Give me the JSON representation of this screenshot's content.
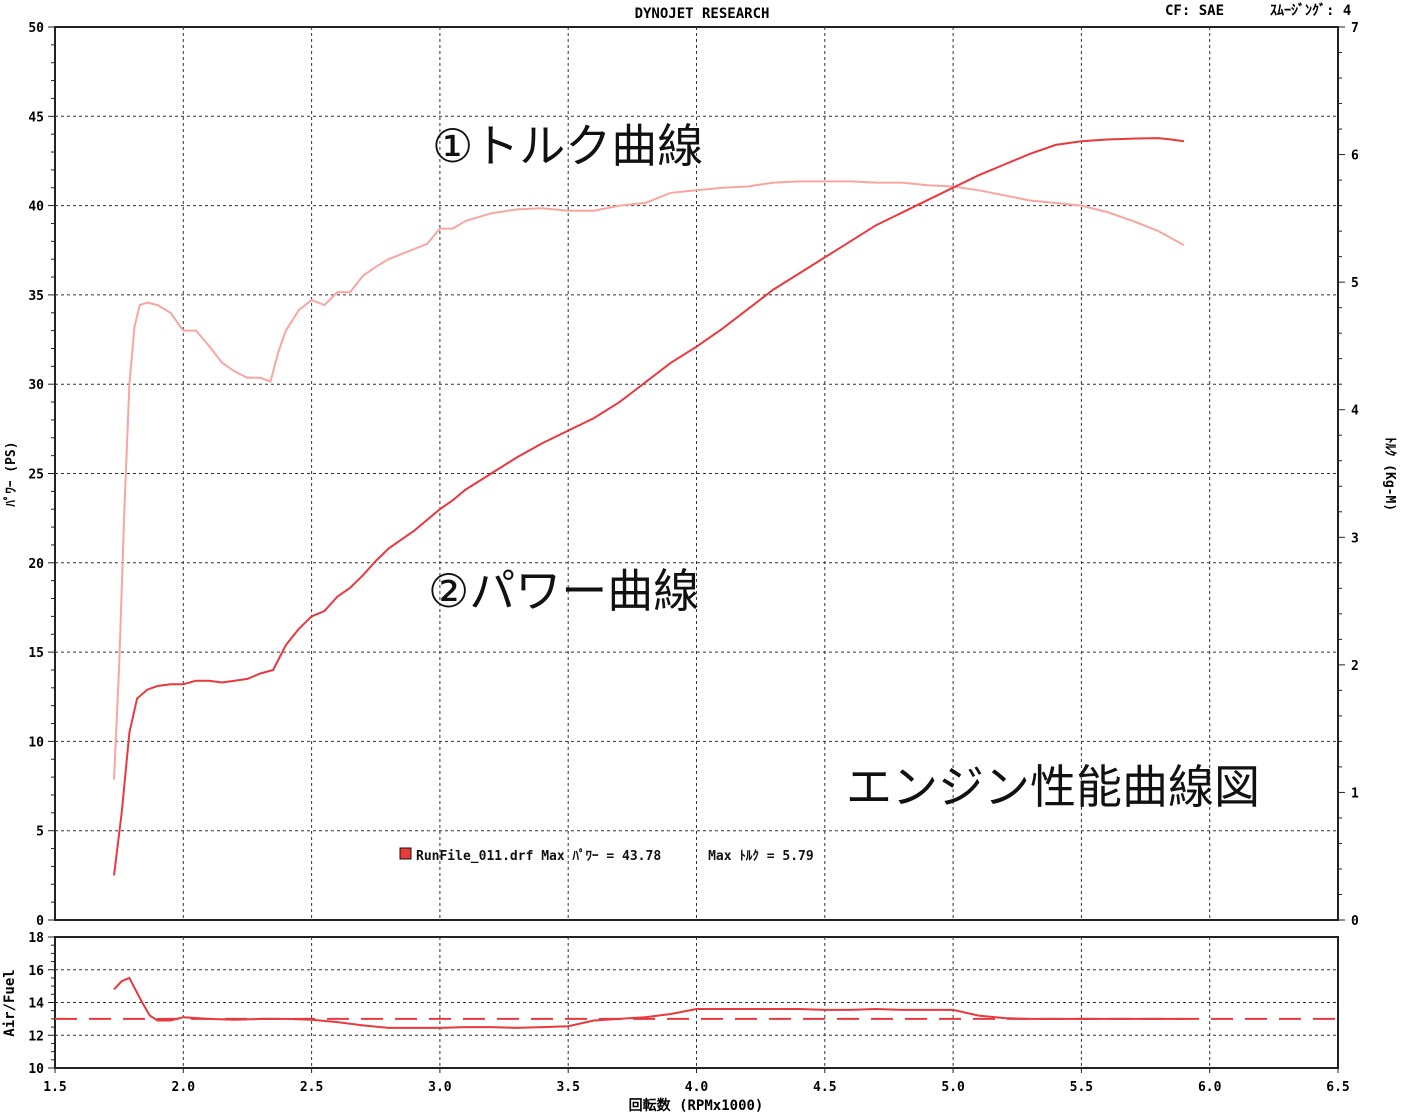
{
  "header": {
    "title": "DYNOJET RESEARCH",
    "cf": "CF: SAE",
    "smoothing": "ｽﾑｰｼﾞﾝｸﾞ: 4"
  },
  "annotations": {
    "torque_curve": "①トルク曲線",
    "power_curve": "②パワー曲線",
    "figure_caption": "エンジン性能曲線図"
  },
  "legend": {
    "swatch_color": "#e83c3c",
    "text": "RunFile_011.drf Max ﾊﾟﾜｰ = 43.78      Max ﾄﾙｸ = 5.79"
  },
  "colors": {
    "power": "#e8393f",
    "torque": "#f7a6a0",
    "afr": "#e8393f",
    "grid": "#333333"
  },
  "chart_data": [
    {
      "type": "line",
      "xlabel": "回転数 (RPMx1000)",
      "ylabel": "ﾊﾟﾜｰ (PS)",
      "y2label": "ﾄﾙｸ (Kg-M)",
      "xlim": [
        1.5,
        6.5
      ],
      "ylim": [
        0,
        50
      ],
      "y2lim": [
        0,
        7
      ],
      "xticks": [
        "1.5",
        "2.0",
        "2.5",
        "3.0",
        "3.5",
        "4.0",
        "4.5",
        "5.0",
        "5.5",
        "6.0",
        "6.5"
      ],
      "yticks": [
        "0",
        "5",
        "10",
        "15",
        "20",
        "25",
        "30",
        "35",
        "40",
        "45",
        "50"
      ],
      "y2ticks": [
        "0",
        "1",
        "2",
        "3",
        "4",
        "5",
        "6",
        "7"
      ],
      "grid": true,
      "series": [
        {
          "axis": "right",
          "x": [
            1.73,
            1.75,
            1.77,
            1.79,
            1.81,
            1.83,
            1.86,
            1.9,
            1.95,
            2.0,
            2.05,
            2.1,
            2.15,
            2.2,
            2.25,
            2.3,
            2.34,
            2.37,
            2.4,
            2.45,
            2.5,
            2.55,
            2.6,
            2.65,
            2.7,
            2.75,
            2.8,
            2.85,
            2.9,
            2.95,
            3.0,
            3.05,
            3.1,
            3.2,
            3.3,
            3.4,
            3.5,
            3.6,
            3.7,
            3.8,
            3.9,
            4.0,
            4.1,
            4.2,
            4.3,
            4.4,
            4.5,
            4.6,
            4.7,
            4.8,
            4.9,
            5.0,
            5.1,
            5.2,
            5.3,
            5.4,
            5.5,
            5.6,
            5.7,
            5.8,
            5.9
          ],
          "values": [
            1.1,
            2.0,
            3.2,
            4.2,
            4.65,
            4.82,
            4.84,
            4.82,
            4.76,
            4.62,
            4.62,
            4.5,
            4.37,
            4.3,
            4.25,
            4.25,
            4.22,
            4.45,
            4.62,
            4.78,
            4.86,
            4.82,
            4.92,
            4.92,
            5.05,
            5.12,
            5.18,
            5.22,
            5.26,
            5.3,
            5.42,
            5.42,
            5.48,
            5.54,
            5.57,
            5.58,
            5.56,
            5.56,
            5.6,
            5.62,
            5.7,
            5.72,
            5.74,
            5.75,
            5.78,
            5.79,
            5.79,
            5.79,
            5.78,
            5.78,
            5.76,
            5.75,
            5.72,
            5.68,
            5.64,
            5.62,
            5.6,
            5.55,
            5.48,
            5.4,
            5.29
          ]
        },
        {
          "axis": "left",
          "x": [
            1.73,
            1.76,
            1.79,
            1.82,
            1.86,
            1.9,
            1.95,
            2.0,
            2.05,
            2.1,
            2.15,
            2.2,
            2.25,
            2.3,
            2.35,
            2.4,
            2.45,
            2.5,
            2.55,
            2.6,
            2.65,
            2.7,
            2.75,
            2.8,
            2.85,
            2.9,
            2.95,
            3.0,
            3.05,
            3.1,
            3.2,
            3.3,
            3.4,
            3.5,
            3.6,
            3.7,
            3.8,
            3.9,
            4.0,
            4.1,
            4.2,
            4.3,
            4.4,
            4.5,
            4.6,
            4.7,
            4.8,
            4.9,
            5.0,
            5.1,
            5.2,
            5.3,
            5.4,
            5.5,
            5.6,
            5.7,
            5.8,
            5.85,
            5.9
          ],
          "values": [
            2.5,
            6.0,
            10.5,
            12.4,
            12.9,
            13.1,
            13.2,
            13.2,
            13.4,
            13.4,
            13.3,
            13.4,
            13.5,
            13.8,
            14.0,
            15.4,
            16.3,
            17.0,
            17.3,
            18.1,
            18.6,
            19.3,
            20.1,
            20.8,
            21.3,
            21.8,
            22.4,
            23.0,
            23.5,
            24.1,
            25.0,
            25.9,
            26.7,
            27.4,
            28.1,
            29.0,
            30.1,
            31.2,
            32.1,
            33.1,
            34.2,
            35.3,
            36.2,
            37.1,
            38.0,
            38.9,
            39.6,
            40.3,
            41.0,
            41.7,
            42.3,
            42.9,
            43.4,
            43.6,
            43.7,
            43.75,
            43.78,
            43.7,
            43.6
          ]
        }
      ]
    },
    {
      "type": "line",
      "ylabel": "Air/Fuel",
      "xlim": [
        1.5,
        6.5
      ],
      "ylim": [
        10,
        18
      ],
      "yticks": [
        "10",
        "12",
        "14",
        "16",
        "18"
      ],
      "reference_line": 13.0,
      "grid": true,
      "series": [
        {
          "x": [
            1.73,
            1.76,
            1.79,
            1.81,
            1.84,
            1.87,
            1.9,
            1.95,
            2.0,
            2.1,
            2.2,
            2.3,
            2.4,
            2.5,
            2.6,
            2.7,
            2.8,
            2.9,
            3.0,
            3.1,
            3.2,
            3.3,
            3.4,
            3.5,
            3.6,
            3.7,
            3.8,
            3.9,
            4.0,
            4.1,
            4.2,
            4.3,
            4.4,
            4.5,
            4.6,
            4.7,
            4.8,
            4.9,
            5.0,
            5.1,
            5.2,
            5.3,
            5.4,
            5.5,
            5.6,
            5.7,
            5.8,
            5.9
          ],
          "values": [
            14.8,
            15.3,
            15.5,
            14.9,
            14.0,
            13.2,
            12.9,
            12.9,
            13.1,
            13.0,
            12.95,
            13.0,
            13.0,
            12.95,
            12.8,
            12.6,
            12.45,
            12.45,
            12.45,
            12.5,
            12.5,
            12.45,
            12.5,
            12.55,
            12.9,
            13.0,
            13.1,
            13.3,
            13.6,
            13.6,
            13.6,
            13.6,
            13.6,
            13.55,
            13.55,
            13.6,
            13.55,
            13.55,
            13.55,
            13.2,
            13.05,
            13.0,
            13.0,
            13.0,
            13.0,
            13.0,
            13.0,
            13.0
          ]
        }
      ]
    }
  ]
}
